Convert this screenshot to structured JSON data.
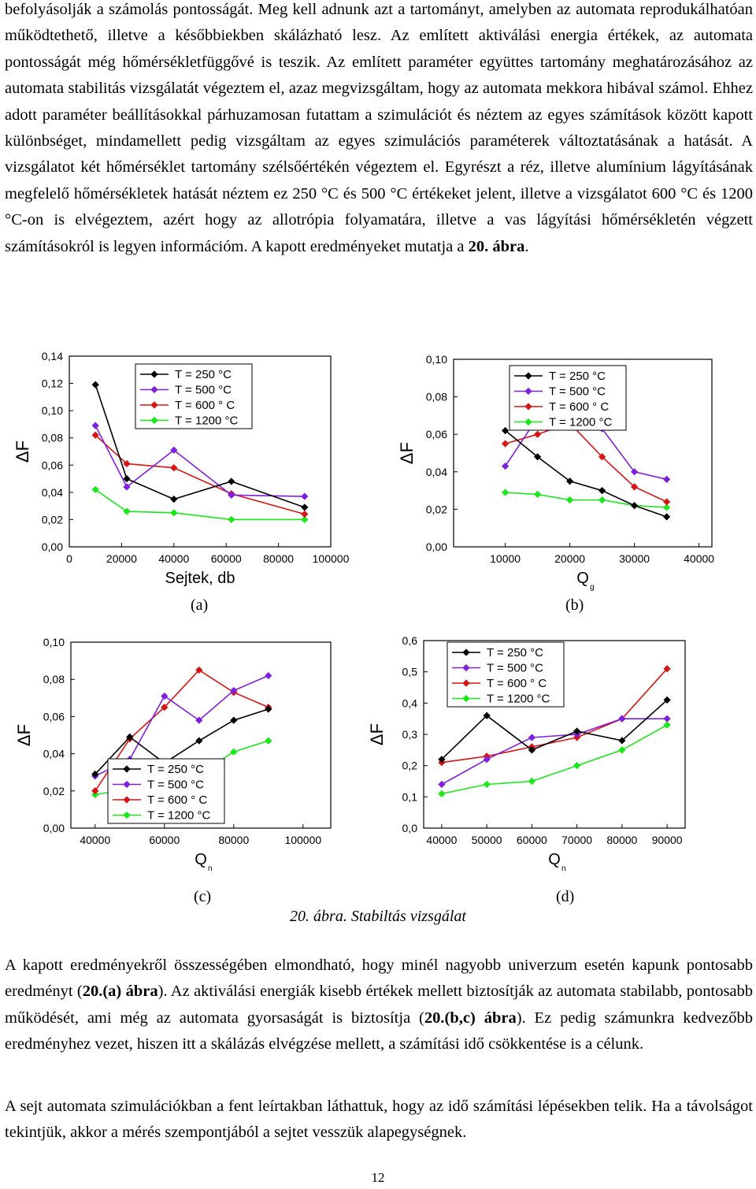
{
  "paragraph1": "befolyásolják a számolás pontosságát. Meg kell adnunk azt a tartományt, amelyben az automata reprodukálhatóan működtethető, illetve a későbbiekben skálázható lesz. Az említett aktiválási energia értékek, az automata pontosságát még hőmérsékletfüggővé is teszik. Az említett paraméter együttes tartomány meghatározásához az automata stabilitás vizsgálatát végeztem el, azaz megvizsgáltam, hogy az automata mekkora hibával számol. Ehhez adott paraméter beállításokkal párhuzamosan futattam a szimulációt és néztem az egyes számítások között kapott különbséget, mindamellett pedig vizsgáltam az egyes szimulációs paraméterek változtatásának a hatását. A vizsgálatot két hőmérséklet tartomány szélsőértékén végeztem el. Egyrészt a réz, illetve alumínium lágyításának megfelelő hőmérsékletek hatását néztem ez 250 °C és 500 °C értékeket jelent, illetve a vizsgálatot 600 °C és 1200 °C-on is elvégeztem, azért hogy az allotrópia folyamatára, illetve a vas lágyítási hőmérsékletén végzett számításokról is legyen információm. A kapott eredményeket mutatja a ",
  "paragraph1_ref": "20. ábra",
  "paragraph1_end": ".",
  "subcaptions": [
    "(a)",
    "(b)",
    "(c)",
    "(d)"
  ],
  "figure_caption": "20. ábra. Stabiltás vizsgálat",
  "paragraph2": {
    "t1": "A kapott eredményekről összességében elmondható, hogy minél nagyobb univerzum esetén kapunk pontosabb eredményt (",
    "b1": "20.(a) ábra",
    "t2": "). Az aktiválási energiák kisebb értékek mellett biztosítják az automata stabilabb, pontosabb működését, ami még az automata gyorsaságát is biztosítja (",
    "b2": "20.(b,c) ábra",
    "t3": "). Ez pedig számunkra kedvezőbb eredményhez vezet, hiszen itt a skálázás elvégzése mellett, a számítási idő csökkentése is a célunk."
  },
  "paragraph3": "A sejt automata szimulációkban a fent leírtakban láthattuk, hogy az idő számítási lépésekben telik. Ha a távolságot tekintjük, akkor a mérés szempontjából a sejtet vesszük alapegységnek.",
  "page_number": "12",
  "series_colors": [
    "#000000",
    "#7f1fdf",
    "#d91414",
    "#18e818"
  ],
  "chart_data": [
    {
      "type": "line",
      "panel": "(a)",
      "xlabel": "Sejtek, db",
      "ylabel": "ΔF",
      "xlim": [
        0,
        100000
      ],
      "ylim": [
        0,
        0.14
      ],
      "xticks": [
        "0",
        "20000",
        "40000",
        "60000",
        "80000",
        "100000"
      ],
      "yticks": [
        "0,00",
        "0,02",
        "0,04",
        "0,06",
        "0,08",
        "0,10",
        "0,12",
        "0,14"
      ],
      "legend_position": "top-right",
      "x": [
        10000,
        22000,
        40000,
        62000,
        90000
      ],
      "series": [
        {
          "name": "T = 250 °C",
          "values": [
            0.119,
            0.05,
            0.035,
            0.048,
            0.029
          ]
        },
        {
          "name": "T = 500 °C",
          "values": [
            0.089,
            0.044,
            0.071,
            0.038,
            0.037
          ]
        },
        {
          "name": "T = 600 ° C",
          "values": [
            0.082,
            0.061,
            0.058,
            0.039,
            0.024
          ]
        },
        {
          "name": "T = 1200 °C",
          "values": [
            0.042,
            0.026,
            0.025,
            0.02,
            0.02
          ]
        }
      ]
    },
    {
      "type": "line",
      "panel": "(b)",
      "xlabel": "Q",
      "xlabel_sub": "g",
      "ylabel": "ΔF",
      "xlim": [
        2000,
        42000
      ],
      "ylim": [
        0,
        0.1
      ],
      "xticks": [
        "10000",
        "20000",
        "30000",
        "40000"
      ],
      "xtick_values": [
        10000,
        20000,
        30000,
        40000
      ],
      "yticks": [
        "0,00",
        "0,02",
        "0,04",
        "0,06",
        "0,08",
        "0,10"
      ],
      "legend_position": "top-right",
      "x": [
        10000,
        15000,
        20000,
        25000,
        30000,
        35000
      ],
      "series": [
        {
          "name": "T = 250 °C",
          "values": [
            0.062,
            0.048,
            0.035,
            0.03,
            0.022,
            0.016
          ]
        },
        {
          "name": "T = 500 °C",
          "values": [
            0.043,
            0.069,
            0.071,
            0.063,
            0.04,
            0.036
          ]
        },
        {
          "name": "T = 600 ° C",
          "values": [
            0.055,
            0.06,
            0.066,
            0.048,
            0.032,
            0.024
          ]
        },
        {
          "name": "T = 1200 °C",
          "values": [
            0.029,
            0.028,
            0.025,
            0.025,
            0.022,
            0.021
          ]
        }
      ]
    },
    {
      "type": "line",
      "panel": "(c)",
      "xlabel": "Q",
      "xlabel_sub": "n",
      "ylabel": "ΔF",
      "xlim": [
        33000,
        108000
      ],
      "ylim": [
        0,
        0.1
      ],
      "xticks": [
        "40000",
        "60000",
        "80000",
        "100000"
      ],
      "xtick_values": [
        40000,
        60000,
        80000,
        100000
      ],
      "yticks": [
        "0,00",
        "0,02",
        "0,04",
        "0,06",
        "0,08",
        "0,10"
      ],
      "legend_position": "bottom-right",
      "x": [
        40000,
        50000,
        60000,
        70000,
        80000,
        90000
      ],
      "series": [
        {
          "name": "T = 250 °C",
          "values": [
            0.029,
            0.049,
            0.035,
            0.047,
            0.058,
            0.064
          ]
        },
        {
          "name": "T = 500 °C",
          "values": [
            0.028,
            0.037,
            0.071,
            0.058,
            0.074,
            0.082
          ]
        },
        {
          "name": "T = 600 ° C",
          "values": [
            0.02,
            0.048,
            0.065,
            0.085,
            0.073,
            0.065
          ]
        },
        {
          "name": "T = 1200 °C",
          "values": [
            0.018,
            0.021,
            0.025,
            0.029,
            0.041,
            0.047
          ]
        }
      ]
    },
    {
      "type": "line",
      "panel": "(d)",
      "xlabel": "Q",
      "xlabel_sub": "n",
      "ylabel": "ΔF",
      "xlim": [
        36000,
        94000
      ],
      "ylim": [
        0,
        0.6
      ],
      "xticks": [
        "40000",
        "50000",
        "60000",
        "70000",
        "80000",
        "90000"
      ],
      "xtick_values": [
        40000,
        50000,
        60000,
        70000,
        80000,
        90000
      ],
      "yticks": [
        "0,0",
        "0,1",
        "0,2",
        "0,3",
        "0,4",
        "0,5",
        "0,6"
      ],
      "legend_position": "top-left",
      "x": [
        40000,
        50000,
        60000,
        70000,
        80000,
        90000
      ],
      "series": [
        {
          "name": "T = 250 °C",
          "values": [
            0.22,
            0.36,
            0.25,
            0.31,
            0.28,
            0.41
          ]
        },
        {
          "name": "T = 500 °C",
          "values": [
            0.14,
            0.22,
            0.29,
            0.3,
            0.35,
            0.35
          ]
        },
        {
          "name": "T = 600 ° C",
          "values": [
            0.21,
            0.23,
            0.26,
            0.29,
            0.35,
            0.51
          ]
        },
        {
          "name": "T = 1200 °C",
          "values": [
            0.11,
            0.14,
            0.15,
            0.2,
            0.25,
            0.33
          ]
        }
      ]
    }
  ]
}
